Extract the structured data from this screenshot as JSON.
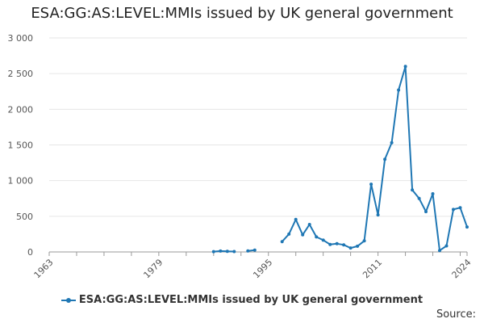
{
  "title": "ESA:GG:AS:LEVEL:MMIs issued by UK general government",
  "source_label": "Source:",
  "colors": {
    "series": "#1f77b4",
    "grid": "#e6e6e6",
    "axis": "#999999"
  },
  "chart_data": {
    "type": "line",
    "title": "ESA:GG:AS:LEVEL:MMIs issued by UK general government",
    "xlabel": "",
    "ylabel": "",
    "xlim": [
      1963,
      2024
    ],
    "ylim": [
      0,
      3000
    ],
    "x_ticks": [
      1963,
      1979,
      1995,
      2011,
      2024
    ],
    "y_ticks": [
      {
        "value": 0,
        "label": "0"
      },
      {
        "value": 500,
        "label": "500"
      },
      {
        "value": 1000,
        "label": "1 000"
      },
      {
        "value": 1500,
        "label": "1 500"
      },
      {
        "value": 2000,
        "label": "2 000"
      },
      {
        "value": 2500,
        "label": "2 500"
      },
      {
        "value": 3000,
        "label": "3 000"
      }
    ],
    "grid": true,
    "legend": "bottom",
    "series": [
      {
        "name": "ESA:GG:AS:LEVEL:MMIs issued by UK general government",
        "points": [
          [
            1987,
            5
          ],
          [
            1988,
            12
          ],
          [
            1989,
            8
          ],
          [
            1990,
            6
          ],
          null,
          [
            1992,
            15
          ],
          [
            1993,
            25
          ],
          null,
          [
            1997,
            145
          ],
          [
            1998,
            250
          ],
          [
            1999,
            455
          ],
          [
            2000,
            240
          ],
          [
            2001,
            385
          ],
          [
            2002,
            210
          ],
          [
            2003,
            165
          ],
          [
            2004,
            105
          ],
          [
            2005,
            115
          ],
          [
            2006,
            100
          ],
          [
            2007,
            55
          ],
          [
            2008,
            80
          ],
          [
            2009,
            155
          ],
          [
            2010,
            950
          ],
          [
            2011,
            520
          ],
          [
            2012,
            1300
          ],
          [
            2013,
            1530
          ],
          [
            2014,
            2270
          ],
          [
            2015,
            2600
          ],
          [
            2016,
            870
          ],
          [
            2017,
            750
          ],
          [
            2018,
            565
          ],
          [
            2019,
            815
          ],
          [
            2020,
            20
          ],
          [
            2021,
            85
          ],
          [
            2022,
            595
          ],
          [
            2023,
            620
          ],
          [
            2024,
            350
          ]
        ]
      }
    ]
  }
}
